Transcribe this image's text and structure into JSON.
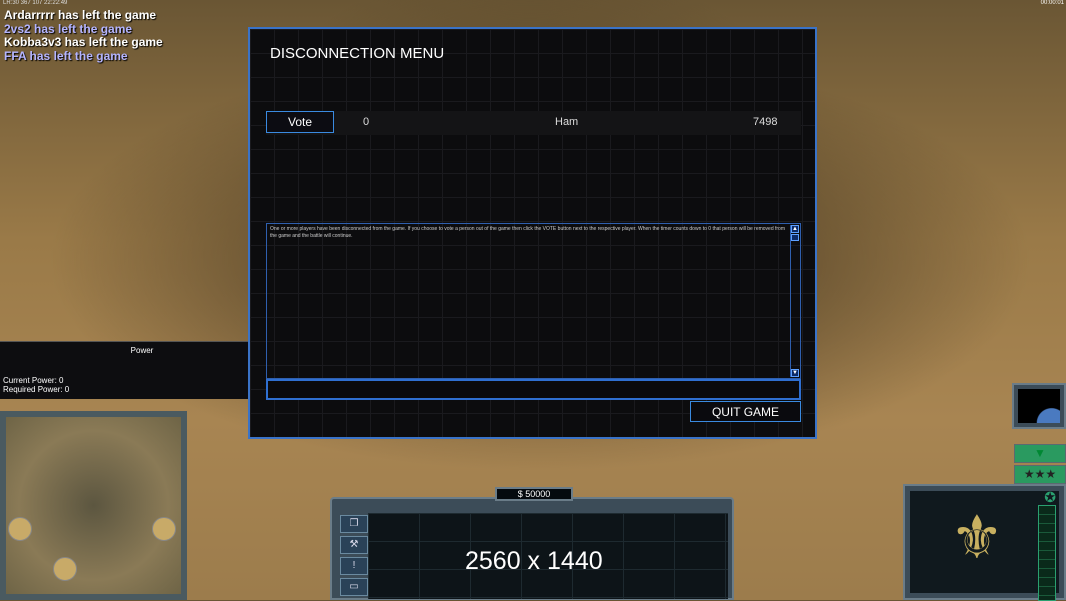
{
  "hud": {
    "stats": "LR:30 367 107 22:22:49",
    "clock": "00:00:01"
  },
  "chat": [
    {
      "text": "Ardarrrrr has left the game",
      "color": "#ffffff"
    },
    {
      "text": "2vs2 has left the game",
      "color": "#b4b4ff"
    },
    {
      "text": "Kobba3v3 has left the game",
      "color": "#ffffff"
    },
    {
      "text": "FFA has left the game",
      "color": "#b4b4ff"
    }
  ],
  "dialog": {
    "title": "DISCONNECTION MENU",
    "players": [
      {
        "vote_label": "Vote",
        "votes": "0",
        "name": "Ham",
        "timer": "7498"
      }
    ],
    "message": "One or more players have been disconnected from the game. If you choose to vote a person out of the game then click the VOTE button next to the respective player. When the timer counts down to 0 that person will be removed from the game and the battle will continue.",
    "chat_input": "",
    "quit_label": "QUIT GAME"
  },
  "power": {
    "title": "Power",
    "current": "Current Power: 0",
    "required": "Required Power: 0"
  },
  "command_bar": {
    "money": "$ 50000",
    "overlay": "2560 x 1440"
  }
}
